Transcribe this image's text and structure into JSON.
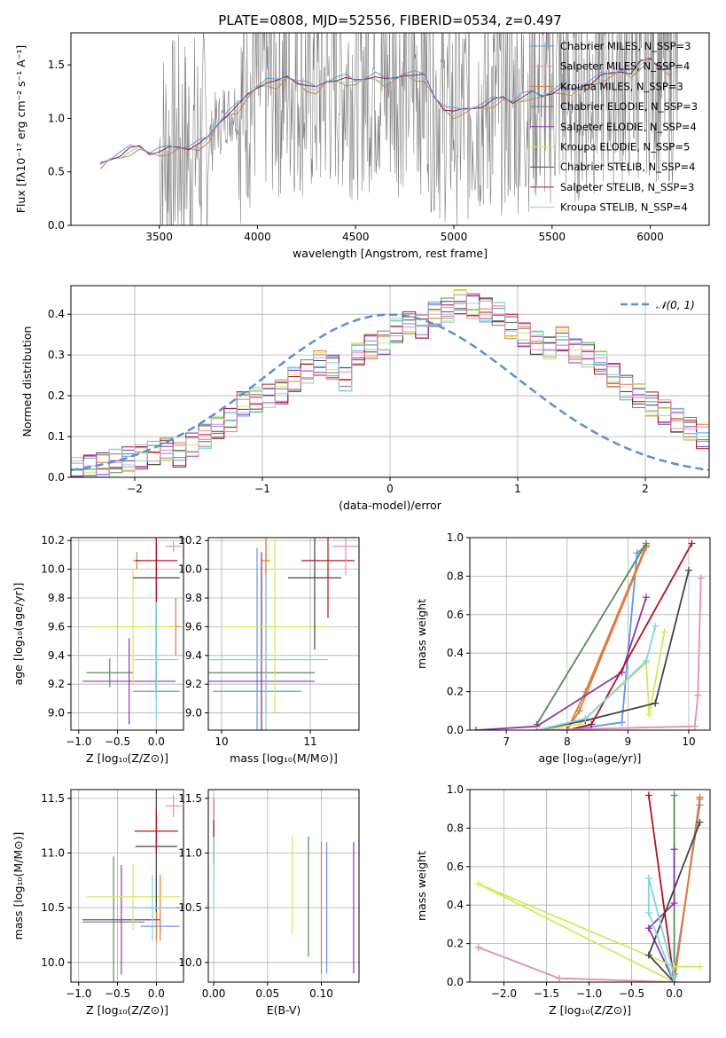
{
  "colors": [
    "#6495ed",
    "#e07b39",
    "#e07b39",
    "#5b8a5b",
    "#8e35b0",
    "#d4e85a",
    "#444444",
    "#b0141e",
    "#7fd7e0",
    "#e88bb8"
  ],
  "chart_data": [
    {
      "type": "line",
      "title": "PLATE=0808, MJD=52556, FIBERID=0534, z=0.497",
      "xlabel": "wavelength [Angstrom, rest frame]",
      "ylabel": "Flux [fλ10⁻¹⁷ erg cm⁻² s⁻¹ A⁻¹]",
      "xlim": [
        3050,
        6300
      ],
      "ylim": [
        0,
        1.8
      ],
      "xticks": [
        "3500",
        "4000",
        "4500",
        "5000",
        "5500",
        "6000"
      ],
      "yticks": [
        "0.0",
        "0.5",
        "1.0",
        "1.5"
      ],
      "legend_position": "top-right",
      "legend": [
        "Chabrier MILES, N_SSP=3",
        "Salpeter MILES, N_SSP=4",
        "Kroupa MILES, N_SSP=3",
        "Chabrier ELODIE, N_SSP=3",
        "Salpeter ELODIE, N_SSP=4",
        "Kroupa ELODIE, N_SSP=5",
        "Chabrier STELIB, N_SSP=4",
        "Salpeter STELIB, N_SSP=3",
        "Kroupa STELIB, N_SSP=4"
      ],
      "model_x": [
        3200,
        3250,
        3300,
        3350,
        3400,
        3450,
        3500,
        3550,
        3600,
        3650,
        3700,
        3750,
        3800,
        3850,
        3900,
        3950,
        4000,
        4050,
        4100,
        4150,
        4200,
        4250,
        4300,
        4350,
        4400,
        4450,
        4500,
        4550,
        4600,
        4650,
        4700,
        4750,
        4800,
        4850,
        4900,
        4950,
        5000,
        5050,
        5100,
        5150,
        5200,
        5250,
        5300,
        5350,
        5400,
        5450,
        5500,
        5550,
        5600,
        5650,
        5700,
        5750,
        5800,
        5850,
        5900,
        5950,
        6000,
        6050,
        6100
      ],
      "model_y": [
        0.55,
        0.62,
        0.66,
        0.7,
        0.72,
        0.68,
        0.69,
        0.7,
        0.72,
        0.73,
        0.75,
        0.8,
        0.95,
        1.05,
        1.1,
        1.2,
        1.3,
        1.34,
        1.32,
        1.38,
        1.35,
        1.3,
        1.26,
        1.34,
        1.37,
        1.36,
        1.33,
        1.38,
        1.4,
        1.34,
        1.36,
        1.42,
        1.4,
        1.38,
        1.2,
        1.1,
        1.05,
        1.06,
        1.1,
        1.12,
        1.15,
        1.18,
        1.16,
        1.2,
        1.22,
        1.2,
        1.25,
        1.28,
        1.24,
        1.3,
        1.34,
        1.38,
        1.4,
        1.45,
        1.42,
        1.5,
        1.55,
        1.48,
        1.45
      ]
    },
    {
      "type": "bar",
      "xlabel": "(data-model)/error",
      "ylabel": "Normed distribution",
      "xlim": [
        -2.5,
        2.5
      ],
      "ylim": [
        0,
        0.47
      ],
      "xticks": [
        "−2",
        "−1",
        "0",
        "1",
        "2"
      ],
      "yticks": [
        "0.0",
        "0.1",
        "0.2",
        "0.3",
        "0.4"
      ],
      "legend": [
        "𝒩(0, 1)"
      ],
      "legend_position": "top-right",
      "bin_start": -2.5,
      "bin_width": 0.1,
      "hist": [
        0.02,
        0.025,
        0.03,
        0.04,
        0.045,
        0.05,
        0.06,
        0.07,
        0.055,
        0.08,
        0.1,
        0.12,
        0.14,
        0.18,
        0.19,
        0.2,
        0.21,
        0.24,
        0.26,
        0.28,
        0.27,
        0.24,
        0.3,
        0.32,
        0.33,
        0.36,
        0.38,
        0.37,
        0.4,
        0.41,
        0.43,
        0.42,
        0.41,
        0.4,
        0.37,
        0.35,
        0.33,
        0.32,
        0.34,
        0.31,
        0.3,
        0.28,
        0.25,
        0.22,
        0.2,
        0.18,
        0.16,
        0.14,
        0.12,
        0.1,
        0.09,
        0.08,
        0.07,
        0.06,
        0.05,
        0.045,
        0.04,
        0.035,
        0.03,
        0.025
      ]
    },
    {
      "type": "scatter",
      "xlabel": "Z [log₁₀(Z/Z⊙)]",
      "ylabel": "age  [log₁₀(age/yr)]",
      "xlim": [
        -1.1,
        0.35
      ],
      "ylim": [
        8.88,
        10.22
      ],
      "xticks": [
        "−1.0",
        "−0.5",
        "0.0"
      ],
      "yticks": [
        "9.0",
        "9.2",
        "9.4",
        "9.6",
        "9.8",
        "10.0",
        "10.2"
      ],
      "points": [
        {
          "x": 0.0,
          "y": 9.15,
          "xerr": 0.3,
          "yerr": 0.05
        },
        {
          "x": 0.25,
          "y": 9.6,
          "xerr": 0.05,
          "yerr": 0.2
        },
        {
          "x": -0.25,
          "y": 10.06,
          "xerr": 0.05,
          "yerr": 0.06
        },
        {
          "x": -0.6,
          "y": 9.28,
          "xerr": 0.3,
          "yerr": 0.1
        },
        {
          "x": -0.35,
          "y": 9.22,
          "xerr": 0.6,
          "yerr": 0.3
        },
        {
          "x": -0.3,
          "y": 9.6,
          "xerr": 0.55,
          "yerr": 0.4
        },
        {
          "x": 0.0,
          "y": 9.94,
          "xerr": 0.3,
          "yerr": 0.8
        },
        {
          "x": 0.0,
          "y": 10.06,
          "xerr": 0.27,
          "yerr": 0.9
        },
        {
          "x": 0.0,
          "y": 9.37,
          "xerr": 0.28,
          "yerr": 0.4
        },
        {
          "x": 0.22,
          "y": 10.16,
          "xerr": 0.1,
          "yerr": 0.04
        }
      ]
    },
    {
      "type": "scatter",
      "xlabel": "mass [log₁₀(M/M⊙)]",
      "ylabel": "",
      "xlim": [
        9.85,
        11.55
      ],
      "ylim": [
        8.88,
        10.22
      ],
      "xticks": [
        "10",
        "11"
      ],
      "yticks": [
        "9.0",
        "9.2",
        "9.4",
        "9.6",
        "9.8",
        "10.0",
        "10.2"
      ],
      "points": [
        {
          "x": 10.4,
          "y": 9.15,
          "xerr": 0.5,
          "yerr": 1.0
        },
        {
          "x": 10.5,
          "y": 9.6,
          "xerr": 0.05,
          "yerr": 0.6
        },
        {
          "x": 10.5,
          "y": 10.06,
          "xerr": 0.05,
          "yerr": 0.9
        },
        {
          "x": 10.45,
          "y": 9.28,
          "xerr": 0.6,
          "yerr": 0.8
        },
        {
          "x": 10.45,
          "y": 9.22,
          "xerr": 0.6,
          "yerr": 0.9
        },
        {
          "x": 10.6,
          "y": 9.6,
          "xerr": 0.6,
          "yerr": 0.6
        },
        {
          "x": 11.05,
          "y": 9.94,
          "xerr": 0.3,
          "yerr": 0.5
        },
        {
          "x": 11.2,
          "y": 10.06,
          "xerr": 0.3,
          "yerr": 0.4
        },
        {
          "x": 10.5,
          "y": 9.37,
          "xerr": 0.7,
          "yerr": 0.6
        },
        {
          "x": 11.4,
          "y": 10.16,
          "xerr": 0.15,
          "yerr": 0.2
        }
      ]
    },
    {
      "type": "line",
      "xlabel": "age  [log₁₀(age/yr)]",
      "ylabel": "mass weight",
      "xlim": [
        6.4,
        10.35
      ],
      "ylim": [
        0,
        1.0
      ],
      "xticks": [
        "7",
        "8",
        "9",
        "10"
      ],
      "yticks": [
        "0.0",
        "0.2",
        "0.4",
        "0.6",
        "0.8",
        "1.0"
      ],
      "series": [
        {
          "x": [
            8.0,
            8.9,
            9.15,
            9.3
          ],
          "y": [
            0.0,
            0.04,
            0.92,
            0.96
          ]
        },
        {
          "x": [
            8.0,
            8.3,
            9.3
          ],
          "y": [
            0.0,
            0.2,
            0.96
          ]
        },
        {
          "x": [
            8.0,
            8.2,
            9.3
          ],
          "y": [
            0.0,
            0.1,
            0.95
          ]
        },
        {
          "x": [
            7.5,
            9.3
          ],
          "y": [
            0.03,
            0.97
          ]
        },
        {
          "x": [
            6.5,
            7.5,
            8.9,
            9.3
          ],
          "y": [
            0.0,
            0.02,
            0.3,
            0.69
          ]
        },
        {
          "x": [
            7.5,
            8.2,
            9.3,
            9.35,
            9.6
          ],
          "y": [
            0.0,
            0.03,
            0.35,
            0.08,
            0.51
          ]
        },
        {
          "x": [
            7.5,
            8.3,
            9.45,
            10.0
          ],
          "y": [
            0.0,
            0.05,
            0.14,
            0.83
          ]
        },
        {
          "x": [
            8.0,
            8.4,
            10.05
          ],
          "y": [
            0.0,
            0.03,
            0.97
          ]
        },
        {
          "x": [
            7.5,
            8.3,
            9.3,
            9.45
          ],
          "y": [
            0.0,
            0.06,
            0.36,
            0.54
          ]
        },
        {
          "x": [
            7.5,
            10.1,
            10.15,
            10.2
          ],
          "y": [
            0.0,
            0.02,
            0.18,
            0.79
          ]
        }
      ]
    },
    {
      "type": "scatter",
      "xlabel": "Z [log₁₀(Z/Z⊙)]",
      "ylabel": "mass [log₁₀(M/M⊙)]",
      "xlim": [
        -1.1,
        0.35
      ],
      "ylim": [
        9.82,
        11.58
      ],
      "xticks": [
        "−1.0",
        "−0.5",
        "0.0"
      ],
      "yticks": [
        "10.0",
        "10.5",
        "11.0",
        "11.5"
      ],
      "points": [
        {
          "x": 0.05,
          "y": 10.33,
          "xerr": 0.25,
          "yerr": 0.05
        },
        {
          "x": 0.0,
          "y": 10.5,
          "xerr": 0.3,
          "yerr": 0.3
        },
        {
          "x": 0.05,
          "y": 10.5,
          "xerr": 0.25,
          "yerr": 0.3
        },
        {
          "x": -0.55,
          "y": 10.37,
          "xerr": 0.4,
          "yerr": 0.6
        },
        {
          "x": -0.45,
          "y": 10.39,
          "xerr": 0.5,
          "yerr": 0.5
        },
        {
          "x": -0.3,
          "y": 10.6,
          "xerr": 0.6,
          "yerr": 0.3
        },
        {
          "x": 0.0,
          "y": 11.06,
          "xerr": 0.27,
          "yerr": 0.6
        },
        {
          "x": 0.0,
          "y": 11.2,
          "xerr": 0.28,
          "yerr": 0.2
        },
        {
          "x": -0.05,
          "y": 10.5,
          "xerr": 0.3,
          "yerr": 0.3
        },
        {
          "x": 0.22,
          "y": 11.43,
          "xerr": 0.1,
          "yerr": 0.1
        }
      ]
    },
    {
      "type": "scatter",
      "xlabel": "E(B-V)",
      "ylabel": "",
      "xlim": [
        -0.005,
        0.135
      ],
      "ylim": [
        9.82,
        11.58
      ],
      "xticks": [
        "0.00",
        "0.05",
        "0.10"
      ],
      "yticks": [
        "10.0",
        "10.5",
        "11.0",
        "11.5"
      ],
      "points": [
        {
          "x": 0.105,
          "y": 10.5,
          "xerr": 0.0,
          "yerr": 0.6
        },
        {
          "x": 0.0,
          "y": 11.0,
          "xerr": 0.0,
          "yerr": 0.3
        },
        {
          "x": 0.1,
          "y": 10.5,
          "xerr": 0.0,
          "yerr": 0.6
        },
        {
          "x": 0.088,
          "y": 10.6,
          "xerr": 0.0,
          "yerr": 0.55
        },
        {
          "x": 0.13,
          "y": 10.5,
          "xerr": 0.0,
          "yerr": 0.6
        },
        {
          "x": 0.073,
          "y": 10.7,
          "xerr": 0.0,
          "yerr": 0.45
        },
        {
          "x": 0.0,
          "y": 11.2,
          "xerr": 0.0,
          "yerr": 0.3
        },
        {
          "x": 0.0,
          "y": 11.2,
          "xerr": 0.0,
          "yerr": 0.3
        },
        {
          "x": 0.0,
          "y": 10.8,
          "xerr": 0.0,
          "yerr": 0.35
        },
        {
          "x": 0.0,
          "y": 11.4,
          "xerr": 0.0,
          "yerr": 0.1
        }
      ]
    },
    {
      "type": "line",
      "xlabel": "Z [log₁₀(Z/Z⊙)]",
      "ylabel": "mass weight",
      "xlim": [
        -2.4,
        0.42
      ],
      "ylim": [
        0,
        1.0
      ],
      "xticks": [
        "−2.0",
        "−1.5",
        "−1.0",
        "−0.5",
        "0.0"
      ],
      "yticks": [
        "0.0",
        "0.2",
        "0.4",
        "0.6",
        "0.8",
        "1.0"
      ],
      "series": [
        {
          "x": [
            0.0,
            0.0,
            0.3
          ],
          "y": [
            0.0,
            0.04,
            0.92
          ]
        },
        {
          "x": [
            0.0,
            0.3
          ],
          "y": [
            0.0,
            0.96
          ]
        },
        {
          "x": [
            0.0,
            0.3
          ],
          "y": [
            0.0,
            0.95
          ]
        },
        {
          "x": [
            0.0,
            0.0
          ],
          "y": [
            0.0,
            0.97
          ]
        },
        {
          "x": [
            0.0,
            -0.3,
            0.0,
            0.0
          ],
          "y": [
            0.0,
            0.28,
            0.41,
            0.69
          ]
        },
        {
          "x": [
            0.0,
            -2.3,
            0.0,
            0.3
          ],
          "y": [
            0.0,
            0.51,
            0.08,
            0.08
          ]
        },
        {
          "x": [
            0.0,
            -0.3,
            0.3
          ],
          "y": [
            0.0,
            0.14,
            0.83
          ]
        },
        {
          "x": [
            0.0,
            -0.3
          ],
          "y": [
            0.0,
            0.97
          ]
        },
        {
          "x": [
            0.0,
            -0.3,
            -0.3,
            0.0
          ],
          "y": [
            0.0,
            0.36,
            0.54,
            0.03
          ]
        },
        {
          "x": [
            0.0,
            -1.35,
            -2.3
          ],
          "y": [
            0.0,
            0.02,
            0.18
          ]
        }
      ]
    }
  ]
}
